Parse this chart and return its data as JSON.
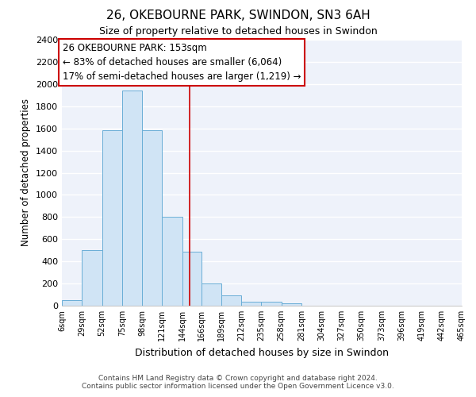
{
  "title1": "26, OKEBOURNE PARK, SWINDON, SN3 6AH",
  "title2": "Size of property relative to detached houses in Swindon",
  "xlabel": "Distribution of detached houses by size in Swindon",
  "ylabel": "Number of detached properties",
  "bin_edges": [
    6,
    29,
    52,
    75,
    98,
    121,
    144,
    166,
    189,
    212,
    235,
    258,
    281,
    304,
    327,
    350,
    373,
    396,
    419,
    442,
    465
  ],
  "bar_heights": [
    50,
    500,
    1580,
    1940,
    1580,
    800,
    490,
    200,
    90,
    35,
    35,
    20,
    0,
    0,
    0,
    0,
    0,
    0,
    0,
    0
  ],
  "bar_color": "#d0e4f5",
  "bar_edge_color": "#6aaed6",
  "vline_x": 153,
  "vline_color": "#cc0000",
  "ylim": [
    0,
    2400
  ],
  "yticks": [
    0,
    200,
    400,
    600,
    800,
    1000,
    1200,
    1400,
    1600,
    1800,
    2000,
    2200,
    2400
  ],
  "annotation_text": "26 OKEBOURNE PARK: 153sqm\n← 83% of detached houses are smaller (6,064)\n17% of semi-detached houses are larger (1,219) →",
  "annotation_box_color": "#ffffff",
  "annotation_box_edge": "#cc0000",
  "footer1": "Contains HM Land Registry data © Crown copyright and database right 2024.",
  "footer2": "Contains public sector information licensed under the Open Government Licence v3.0.",
  "bg_color": "#eef2fa",
  "fig_bg_color": "#ffffff",
  "grid_color": "#ffffff",
  "tick_labels": [
    "6sqm",
    "29sqm",
    "52sqm",
    "75sqm",
    "98sqm",
    "121sqm",
    "144sqm",
    "166sqm",
    "189sqm",
    "212sqm",
    "235sqm",
    "258sqm",
    "281sqm",
    "304sqm",
    "327sqm",
    "350sqm",
    "373sqm",
    "396sqm",
    "419sqm",
    "442sqm",
    "465sqm"
  ]
}
